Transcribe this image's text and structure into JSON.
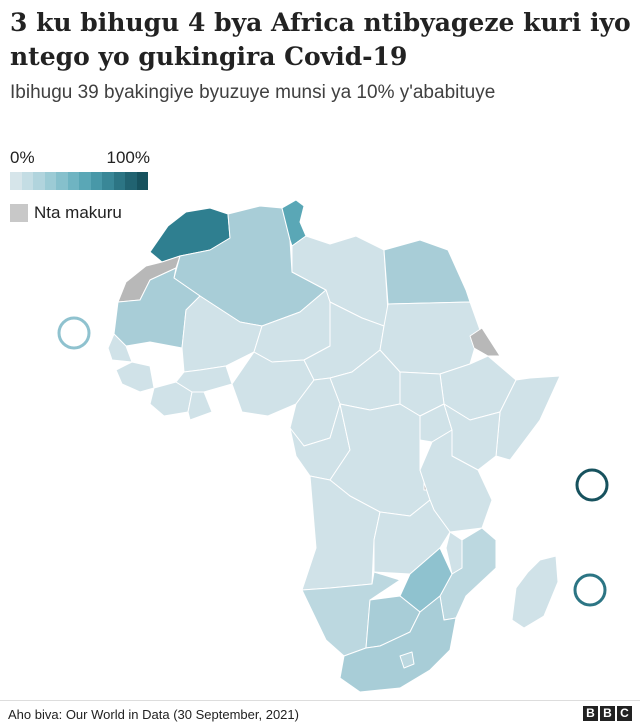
{
  "title": "3 ku bihugu 4 bya Africa ntibyageze kuri iyo ntego yo gukingira Covid-19",
  "subtitle": "Ibihugu 39 byakingiye byuzuye munsi ya 10% y'ababituye",
  "legend": {
    "min_label": "0%",
    "max_label": "100%",
    "ramp_colors": [
      "#d6e5ea",
      "#c4dde4",
      "#b1d4dd",
      "#9ccbd5",
      "#86c0cc",
      "#6fb4c2",
      "#5aa7b6",
      "#4898a8",
      "#398797",
      "#2c7584",
      "#216371",
      "#17525e"
    ],
    "nodata_label": "Nta makuru",
    "nodata_color": "#c8c8c8"
  },
  "map": {
    "region": "Africa",
    "metric": "share of population fully vaccinated",
    "colors": {
      "level_low": "#d0e2e8",
      "level_2": "#bcd8e0",
      "level_3": "#a8cdd7",
      "level_4": "#8fc2cf",
      "level_5": "#5aa7b6",
      "level_high": "#2f7f90",
      "nodata": "#b8b8b8",
      "border": "#ffffff"
    },
    "island_markers": [
      "cape-verde",
      "mauritius",
      "seychelles"
    ]
  },
  "footer": {
    "source": "Aho biva: Our World in Data (30 September, 2021)",
    "logo": [
      "B",
      "B",
      "C"
    ]
  }
}
